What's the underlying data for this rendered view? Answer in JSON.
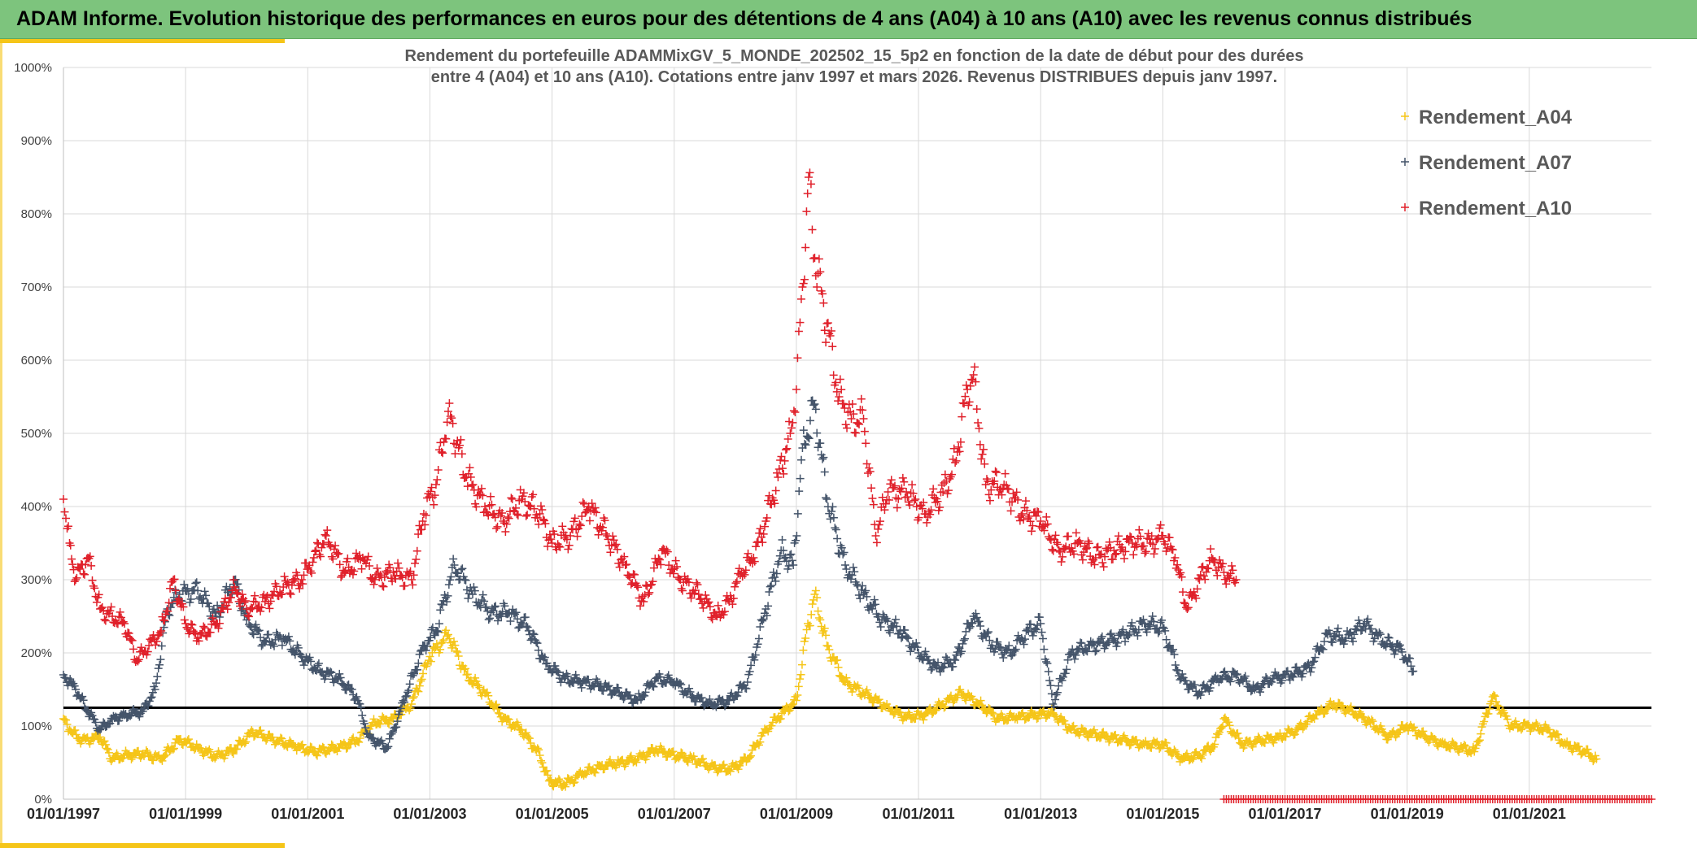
{
  "header": {
    "title": "ADAM Informe. Evolution historique des performances en euros pour des détentions de 4 ans (A04) à 10 ans (A10) avec les revenus connus distribués"
  },
  "colors": {
    "banner": "#7dc47d",
    "accent": "#f5c518",
    "A04": "#f5c518",
    "A07": "#44546a",
    "A10": "#e0202a",
    "reference_line": "#000000",
    "grid": "#d9d9d9"
  },
  "chart_data": {
    "type": "scatter",
    "title_lines": [
      "Rendement du portefeuille ADAMMixGV_5_MONDE_202502_15_5p2  en fonction de la date de début pour des durées",
      "entre 4 (A04) et 10 ans (A10). Cotations entre janv 1997 et mars 2026. Revenus DISTRIBUES depuis janv 1997."
    ],
    "x_axis": {
      "range": [
        1997.0,
        2023.0
      ],
      "tick_values": [
        1997,
        1999,
        2001,
        2003,
        2005,
        2007,
        2009,
        2011,
        2013,
        2015,
        2017,
        2019,
        2021
      ],
      "tick_labels": [
        "01/01/1997",
        "01/01/1999",
        "01/01/2001",
        "01/01/2003",
        "01/01/2005",
        "01/01/2007",
        "01/01/2009",
        "01/01/2011",
        "01/01/2013",
        "01/01/2015",
        "01/01/2017",
        "01/01/2019",
        "01/01/2021"
      ]
    },
    "y_axis": {
      "range": [
        0,
        1000
      ],
      "tick_values": [
        0,
        100,
        200,
        300,
        400,
        500,
        600,
        700,
        800,
        900,
        1000
      ],
      "tick_labels": [
        "0%",
        "100%",
        "200%",
        "300%",
        "400%",
        "500%",
        "600%",
        "700%",
        "800%",
        "900%",
        "1000%"
      ]
    },
    "reference_line": {
      "y": 125
    },
    "legend_position": "top-right",
    "series": [
      {
        "name": "Rendement_A04",
        "key": "A04",
        "x": [
          1997.0,
          1997.1,
          1997.3,
          1997.6,
          1997.8,
          1998.0,
          1998.3,
          1998.6,
          1998.9,
          1999.2,
          1999.5,
          1999.8,
          2000.1,
          2000.5,
          2000.8,
          2001.1,
          2001.5,
          2001.8,
          2002.1,
          2002.4,
          2002.7,
          2003.0,
          2003.3,
          2003.6,
          2003.9,
          2004.2,
          2004.5,
          2004.8,
          2004.95,
          2005.2,
          2005.5,
          2005.8,
          2006.1,
          2006.4,
          2006.7,
          2007.0,
          2007.3,
          2007.6,
          2007.9,
          2008.2,
          2008.5,
          2008.8,
          2009.0,
          2009.15,
          2009.3,
          2009.5,
          2009.8,
          2010.1,
          2010.5,
          2010.8,
          2011.1,
          2011.4,
          2011.7,
          2012.0,
          2012.3,
          2012.6,
          2012.9,
          2013.2,
          2013.5,
          2013.8,
          2014.1,
          2014.4,
          2014.7,
          2015.0,
          2015.3,
          2015.6,
          2015.85,
          2016.0,
          2016.3,
          2016.6,
          2016.9,
          2017.2,
          2017.5,
          2017.8,
          2018.1,
          2018.4,
          2018.7,
          2019.0,
          2019.3,
          2019.6,
          2019.9,
          2020.1,
          2020.4,
          2020.7,
          2021.0,
          2021.3,
          2021.6,
          2021.9,
          2022.1
        ],
        "y": [
          110,
          95,
          80,
          85,
          55,
          60,
          62,
          55,
          82,
          70,
          58,
          68,
          92,
          80,
          72,
          65,
          70,
          80,
          105,
          110,
          130,
          195,
          225,
          170,
          145,
          110,
          95,
          60,
          25,
          20,
          35,
          45,
          50,
          55,
          68,
          60,
          55,
          45,
          40,
          55,
          95,
          120,
          135,
          220,
          280,
          210,
          160,
          145,
          125,
          112,
          115,
          130,
          145,
          130,
          110,
          112,
          115,
          118,
          95,
          90,
          85,
          80,
          75,
          75,
          55,
          60,
          75,
          110,
          75,
          80,
          85,
          95,
          115,
          130,
          120,
          105,
          85,
          100,
          85,
          75,
          70,
          65,
          140,
          100,
          100,
          95,
          75,
          65,
          55
        ]
      },
      {
        "name": "Rendement_A07",
        "key": "A07",
        "x": [
          1997.0,
          1997.2,
          1997.4,
          1997.6,
          1997.8,
          1998.0,
          1998.3,
          1998.5,
          1998.7,
          1998.9,
          1999.2,
          1999.5,
          1999.8,
          2000.0,
          2000.3,
          2000.6,
          2000.9,
          2001.2,
          2001.5,
          2001.8,
          2002.0,
          2002.3,
          2002.6,
          2002.9,
          2003.1,
          2003.4,
          2003.7,
          2004.0,
          2004.3,
          2004.6,
          2004.9,
          2005.2,
          2005.5,
          2005.8,
          2006.1,
          2006.4,
          2006.7,
          2007.0,
          2007.3,
          2007.6,
          2007.9,
          2008.2,
          2008.5,
          2008.75,
          2008.95,
          2009.1,
          2009.3,
          2009.5,
          2009.8,
          2010.1,
          2010.4,
          2010.7,
          2011.0,
          2011.3,
          2011.6,
          2011.9,
          2012.2,
          2012.5,
          2012.8,
          2013.0,
          2013.2,
          2013.5,
          2013.8,
          2014.1,
          2014.4,
          2014.7,
          2015.0,
          2015.3,
          2015.6,
          2015.9,
          2016.2,
          2016.5,
          2016.8,
          2017.1,
          2017.4,
          2017.7,
          2018.0,
          2018.3,
          2018.6,
          2018.9,
          2019.1
        ],
        "y": [
          170,
          150,
          120,
          95,
          110,
          115,
          120,
          150,
          260,
          280,
          285,
          250,
          300,
          245,
          215,
          220,
          195,
          175,
          165,
          140,
          85,
          70,
          140,
          210,
          230,
          320,
          280,
          255,
          255,
          235,
          185,
          165,
          160,
          155,
          145,
          135,
          165,
          160,
          140,
          130,
          135,
          160,
          260,
          340,
          320,
          480,
          540,
          410,
          320,
          280,
          245,
          230,
          200,
          180,
          190,
          250,
          210,
          200,
          230,
          240,
          130,
          200,
          210,
          215,
          225,
          240,
          235,
          165,
          145,
          165,
          170,
          150,
          165,
          170,
          180,
          225,
          220,
          240,
          215,
          205,
          175
        ]
      },
      {
        "name": "Rendement_A10",
        "key": "A10",
        "x": [
          1997.0,
          1997.1,
          1997.2,
          1997.4,
          1997.6,
          1997.8,
          1998.0,
          1998.2,
          1998.4,
          1998.6,
          1998.8,
          1999.0,
          1999.2,
          1999.5,
          1999.8,
          2000.0,
          2000.3,
          2000.6,
          2000.9,
          2001.1,
          2001.3,
          2001.6,
          2001.9,
          2002.1,
          2002.4,
          2002.7,
          2002.9,
          2003.1,
          2003.3,
          2003.6,
          2003.9,
          2004.2,
          2004.5,
          2004.8,
          2005.0,
          2005.3,
          2005.6,
          2005.9,
          2006.2,
          2006.5,
          2006.8,
          2007.1,
          2007.4,
          2007.7,
          2007.9,
          2008.1,
          2008.3,
          2008.5,
          2008.7,
          2008.9,
          2009.0,
          2009.1,
          2009.2,
          2009.3,
          2009.5,
          2009.7,
          2009.9,
          2010.1,
          2010.3,
          2010.5,
          2010.8,
          2011.1,
          2011.4,
          2011.6,
          2011.8,
          2011.9,
          2012.1,
          2012.4,
          2012.7,
          2013.0,
          2013.3,
          2013.6,
          2013.9,
          2014.2,
          2014.5,
          2014.8,
          2015.0,
          2015.2,
          2015.4,
          2015.6,
          2015.8,
          2016.0,
          2016.2
        ],
        "y": [
          410,
          350,
          300,
          330,
          260,
          250,
          240,
          190,
          210,
          230,
          300,
          240,
          220,
          240,
          290,
          260,
          270,
          290,
          300,
          330,
          360,
          310,
          330,
          300,
          310,
          300,
          390,
          430,
          530,
          440,
          400,
          380,
          410,
          390,
          350,
          360,
          400,
          360,
          320,
          270,
          340,
          300,
          280,
          250,
          270,
          310,
          330,
          380,
          440,
          500,
          560,
          700,
          850,
          740,
          650,
          550,
          520,
          520,
          360,
          420,
          420,
          390,
          420,
          460,
          560,
          580,
          430,
          430,
          390,
          380,
          340,
          350,
          330,
          340,
          350,
          350,
          360,
          330,
          260,
          300,
          330,
          310,
          300
        ]
      }
    ],
    "legend": [
      {
        "key": "A04",
        "label": "Rendement_A04"
      },
      {
        "key": "A07",
        "label": "Rendement_A07"
      },
      {
        "key": "A10",
        "label": "Rendement_A10"
      }
    ],
    "tail_marker": {
      "series": "A10",
      "x_start": 2016.0,
      "x_end": 2023.0,
      "y": 0
    }
  }
}
